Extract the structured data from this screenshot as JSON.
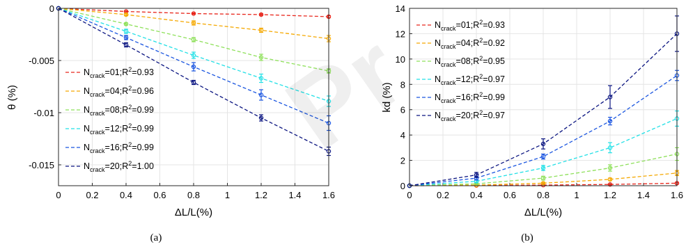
{
  "panels": [
    {
      "key": "a",
      "panel_label": "(a)",
      "xlabel": "ΔL/L(%)",
      "ylabel": "θ (%)",
      "xticks": [
        "0",
        "0.2",
        "0.4",
        "0.6",
        "0.8",
        "1",
        "1.2",
        "1.4",
        "1.6"
      ],
      "yticks": [
        "0",
        "-0.005",
        "-0.01",
        "-0.015"
      ],
      "legend_items": [
        {
          "main": "N",
          "sub": "crack",
          "mid": "=01;R",
          "sup": "2",
          "tail": "=0.93"
        },
        {
          "main": "N",
          "sub": "crack",
          "mid": "=04;R",
          "sup": "2",
          "tail": "=0.96"
        },
        {
          "main": "N",
          "sub": "crack",
          "mid": "=08;R",
          "sup": "2",
          "tail": "=0.99"
        },
        {
          "main": "N",
          "sub": "crack",
          "mid": "=12;R",
          "sup": "2",
          "tail": "=0.99"
        },
        {
          "main": "N",
          "sub": "crack",
          "mid": "=16;R",
          "sup": "2",
          "tail": "=0.99"
        },
        {
          "main": "N",
          "sub": "crack",
          "mid": "=20;R",
          "sup": "2",
          "tail": "=1.00"
        }
      ]
    },
    {
      "key": "b",
      "panel_label": "(b)",
      "xlabel": "ΔL/L(%)",
      "ylabel": "kd (%)",
      "xticks": [
        "0",
        "0.2",
        "0.4",
        "0.6",
        "0.8",
        "1",
        "1.2",
        "1.4",
        "1.6"
      ],
      "yticks": [
        "0",
        "2",
        "4",
        "6",
        "8",
        "10",
        "12",
        "14"
      ],
      "legend_items": [
        {
          "main": "N",
          "sub": "crack",
          "mid": "=01;R",
          "sup": "2",
          "tail": "=0.93"
        },
        {
          "main": "N",
          "sub": "crack",
          "mid": "=04;R",
          "sup": "2",
          "tail": "=0.92"
        },
        {
          "main": "N",
          "sub": "crack",
          "mid": "=08;R",
          "sup": "2",
          "tail": "=0.95"
        },
        {
          "main": "N",
          "sub": "crack",
          "mid": "=12;R",
          "sup": "2",
          "tail": "=0.97"
        },
        {
          "main": "N",
          "sub": "crack",
          "mid": "=16;R",
          "sup": "2",
          "tail": "=0.99"
        },
        {
          "main": "N",
          "sub": "crack",
          "mid": "=20;R",
          "sup": "2",
          "tail": "=0.97"
        }
      ]
    }
  ],
  "series_colors": [
    "#e8261c",
    "#f5a800",
    "#8ee05a",
    "#22e0e6",
    "#1a55e0",
    "#0a1480"
  ],
  "chart_data": [
    {
      "type": "line",
      "panel": "(a)",
      "xlabel": "ΔL/L(%)",
      "ylabel": "θ (%)",
      "xlim": [
        0,
        1.6
      ],
      "ylim": [
        -0.017,
        0
      ],
      "grid": true,
      "legend_placement": "left-middle",
      "x": [
        0,
        0.4,
        0.8,
        1.2,
        1.6
      ],
      "series": [
        {
          "name": "Ncrack=01;R2=0.93",
          "values": [
            0,
            -0.0003,
            -0.0005,
            -0.0006,
            -0.0008
          ],
          "errors": [
            0,
            5e-05,
            6e-05,
            8e-05,
            0.0001
          ]
        },
        {
          "name": "Ncrack=04;R2=0.96",
          "values": [
            0,
            -0.0006,
            -0.0014,
            -0.0021,
            -0.0029
          ],
          "errors": [
            0,
            0.0001,
            0.0002,
            0.0002,
            0.0003
          ]
        },
        {
          "name": "Ncrack=08;R2=0.99",
          "values": [
            0,
            -0.0015,
            -0.003,
            -0.0047,
            -0.006
          ],
          "errors": [
            0,
            0.0001,
            0.0002,
            0.0003,
            0.0002
          ]
        },
        {
          "name": "Ncrack=12;R2=0.99",
          "values": [
            0,
            -0.0022,
            -0.0045,
            -0.0067,
            -0.0089
          ],
          "errors": [
            0,
            0.0002,
            0.0003,
            0.0004,
            0.0005
          ]
        },
        {
          "name": "Ncrack=16;R2=0.99",
          "values": [
            0,
            -0.0028,
            -0.0056,
            -0.0083,
            -0.011
          ],
          "errors": [
            0,
            0.0002,
            0.0004,
            0.0005,
            0.0007
          ]
        },
        {
          "name": "Ncrack=20;R2=1.00",
          "values": [
            0,
            -0.0035,
            -0.0071,
            -0.0105,
            -0.0137
          ],
          "errors": [
            0,
            0.0002,
            0.0002,
            0.0003,
            0.0004
          ]
        }
      ]
    },
    {
      "type": "line",
      "panel": "(b)",
      "xlabel": "ΔL/L(%)",
      "ylabel": "kd (%)",
      "xlim": [
        0,
        1.6
      ],
      "ylim": [
        0,
        14
      ],
      "grid": true,
      "legend_placement": "top-left",
      "x": [
        0,
        0.4,
        0.8,
        1.2,
        1.6
      ],
      "series": [
        {
          "name": "Ncrack=01;R2=0.93",
          "values": [
            0,
            0.02,
            0.05,
            0.1,
            0.2
          ],
          "errors": [
            0,
            0.01,
            0.02,
            0.03,
            0.05
          ]
        },
        {
          "name": "Ncrack=04;R2=0.92",
          "values": [
            0,
            0.05,
            0.2,
            0.5,
            1.0
          ],
          "errors": [
            0,
            0.02,
            0.05,
            0.1,
            0.2
          ]
        },
        {
          "name": "Ncrack=08;R2=0.95",
          "values": [
            0,
            0.15,
            0.6,
            1.4,
            2.5
          ],
          "errors": [
            0,
            0.05,
            0.15,
            0.25,
            0.5
          ]
        },
        {
          "name": "Ncrack=12;R2=0.97",
          "values": [
            0,
            0.35,
            1.4,
            3.0,
            5.3
          ],
          "errors": [
            0,
            0.1,
            0.2,
            0.4,
            0.6
          ]
        },
        {
          "name": "Ncrack=16;R2=0.99",
          "values": [
            0,
            0.6,
            2.3,
            5.1,
            8.7
          ],
          "errors": [
            0,
            0.15,
            0.2,
            0.3,
            0.4
          ]
        },
        {
          "name": "Ncrack=20;R2=0.97",
          "values": [
            0,
            0.85,
            3.3,
            7.0,
            12.0
          ],
          "errors": [
            0,
            0.2,
            0.4,
            0.9,
            1.4
          ]
        }
      ]
    }
  ]
}
